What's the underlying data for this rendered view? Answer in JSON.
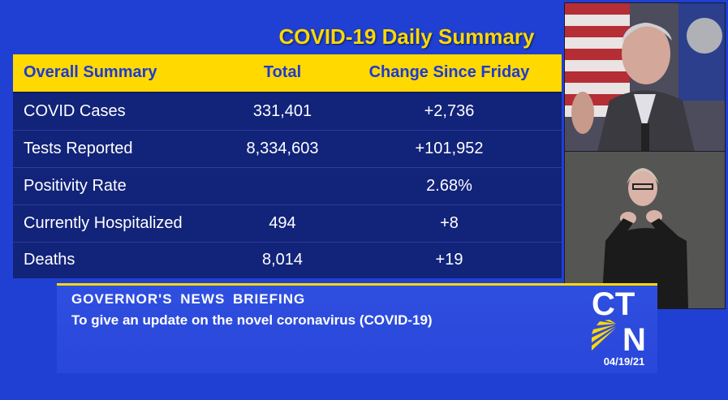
{
  "summary": {
    "title": "COVID-19 Daily Summary",
    "headers": [
      "Overall Summary",
      "Total",
      "Change Since Friday"
    ],
    "rows": [
      {
        "label": "COVID Cases",
        "total": "331,401",
        "change": "+2,736"
      },
      {
        "label": "Tests Reported",
        "total": "8,334,603",
        "change": "+101,952"
      },
      {
        "label": "Positivity Rate",
        "total": "",
        "change": "2.68%"
      },
      {
        "label": "Currently Hospitalized",
        "total": "494",
        "change": "+8"
      },
      {
        "label": "Deaths",
        "total": "8,014",
        "change": "+19"
      }
    ]
  },
  "lower_third": {
    "title": "GOVERNOR'S NEWS BRIEFING",
    "subtitle": "To give an update on the novel coronavirus (COVID-19)"
  },
  "branding": {
    "logo_line1": "CT",
    "logo_line2": "N",
    "date": "04/19/21"
  },
  "colors": {
    "background": "#1f40d2",
    "accent_yellow": "#ffd900",
    "table_body": "#12237a"
  },
  "icons": [
    "american-flag-icon",
    "ctn-logo-icon"
  ]
}
